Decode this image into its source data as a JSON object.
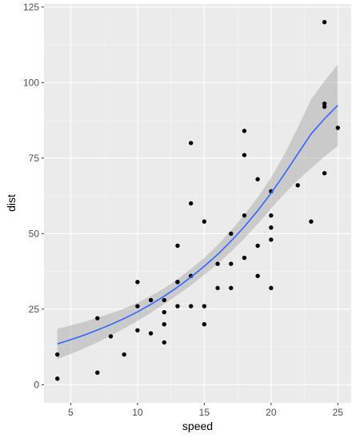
{
  "chart_data": {
    "type": "scatter",
    "title": "",
    "xlabel": "speed",
    "ylabel": "dist",
    "xlim": [
      3.0,
      26.0
    ],
    "ylim": [
      -6.0,
      126.0
    ],
    "x_ticks": [
      5,
      10,
      15,
      20,
      25
    ],
    "y_ticks": [
      0,
      25,
      50,
      75,
      100,
      125
    ],
    "grid": true,
    "legend": "none",
    "colors": {
      "panel_background": "#ebebeb",
      "grid_major": "#ffffff",
      "grid_minor": "#f5f5f5",
      "point": "#000000",
      "smooth_line": "#3366ff",
      "ribbon": "#999999"
    },
    "points": [
      [
        4,
        2
      ],
      [
        4,
        10
      ],
      [
        7,
        4
      ],
      [
        7,
        22
      ],
      [
        8,
        16
      ],
      [
        9,
        10
      ],
      [
        10,
        18
      ],
      [
        10,
        26
      ],
      [
        10,
        34
      ],
      [
        11,
        17
      ],
      [
        11,
        28
      ],
      [
        12,
        14
      ],
      [
        12,
        20
      ],
      [
        12,
        24
      ],
      [
        12,
        28
      ],
      [
        13,
        26
      ],
      [
        13,
        34
      ],
      [
        13,
        34
      ],
      [
        13,
        46
      ],
      [
        14,
        26
      ],
      [
        14,
        36
      ],
      [
        14,
        60
      ],
      [
        14,
        80
      ],
      [
        15,
        20
      ],
      [
        15,
        26
      ],
      [
        15,
        54
      ],
      [
        16,
        32
      ],
      [
        16,
        40
      ],
      [
        17,
        32
      ],
      [
        17,
        40
      ],
      [
        17,
        50
      ],
      [
        18,
        42
      ],
      [
        18,
        56
      ],
      [
        18,
        76
      ],
      [
        18,
        84
      ],
      [
        19,
        36
      ],
      [
        19,
        46
      ],
      [
        19,
        68
      ],
      [
        20,
        32
      ],
      [
        20,
        48
      ],
      [
        20,
        52
      ],
      [
        20,
        56
      ],
      [
        20,
        64
      ],
      [
        22,
        66
      ],
      [
        23,
        54
      ],
      [
        24,
        70
      ],
      [
        24,
        92
      ],
      [
        24,
        93
      ],
      [
        24,
        120
      ],
      [
        25,
        85
      ]
    ],
    "smooth": {
      "x": [
        4,
        5,
        6,
        7,
        8,
        9,
        10,
        11,
        12,
        13,
        14,
        15,
        16,
        17,
        18,
        19,
        20,
        21,
        22,
        23,
        24,
        25
      ],
      "y": [
        13.5,
        14.9,
        16.4,
        18.1,
        19.9,
        21.9,
        24.1,
        26.6,
        29.3,
        32.3,
        35.6,
        39.2,
        43.1,
        47.5,
        52.3,
        57.6,
        63.4,
        69.7,
        76.4,
        83.0,
        88.0,
        92.5
      ],
      "lower": [
        8.5,
        10.2,
        12.0,
        14.0,
        16.2,
        18.6,
        21.1,
        23.8,
        26.7,
        29.7,
        32.9,
        36.4,
        40.0,
        44.0,
        48.4,
        53.2,
        58.3,
        63.2,
        67.7,
        71.6,
        75.5,
        79.0
      ],
      "upper": [
        18.5,
        19.6,
        20.8,
        22.2,
        23.6,
        25.2,
        27.1,
        29.4,
        31.9,
        34.9,
        38.3,
        42.0,
        46.2,
        51.0,
        56.2,
        62.0,
        68.5,
        76.2,
        85.1,
        94.4,
        100.5,
        106.0
      ]
    }
  }
}
